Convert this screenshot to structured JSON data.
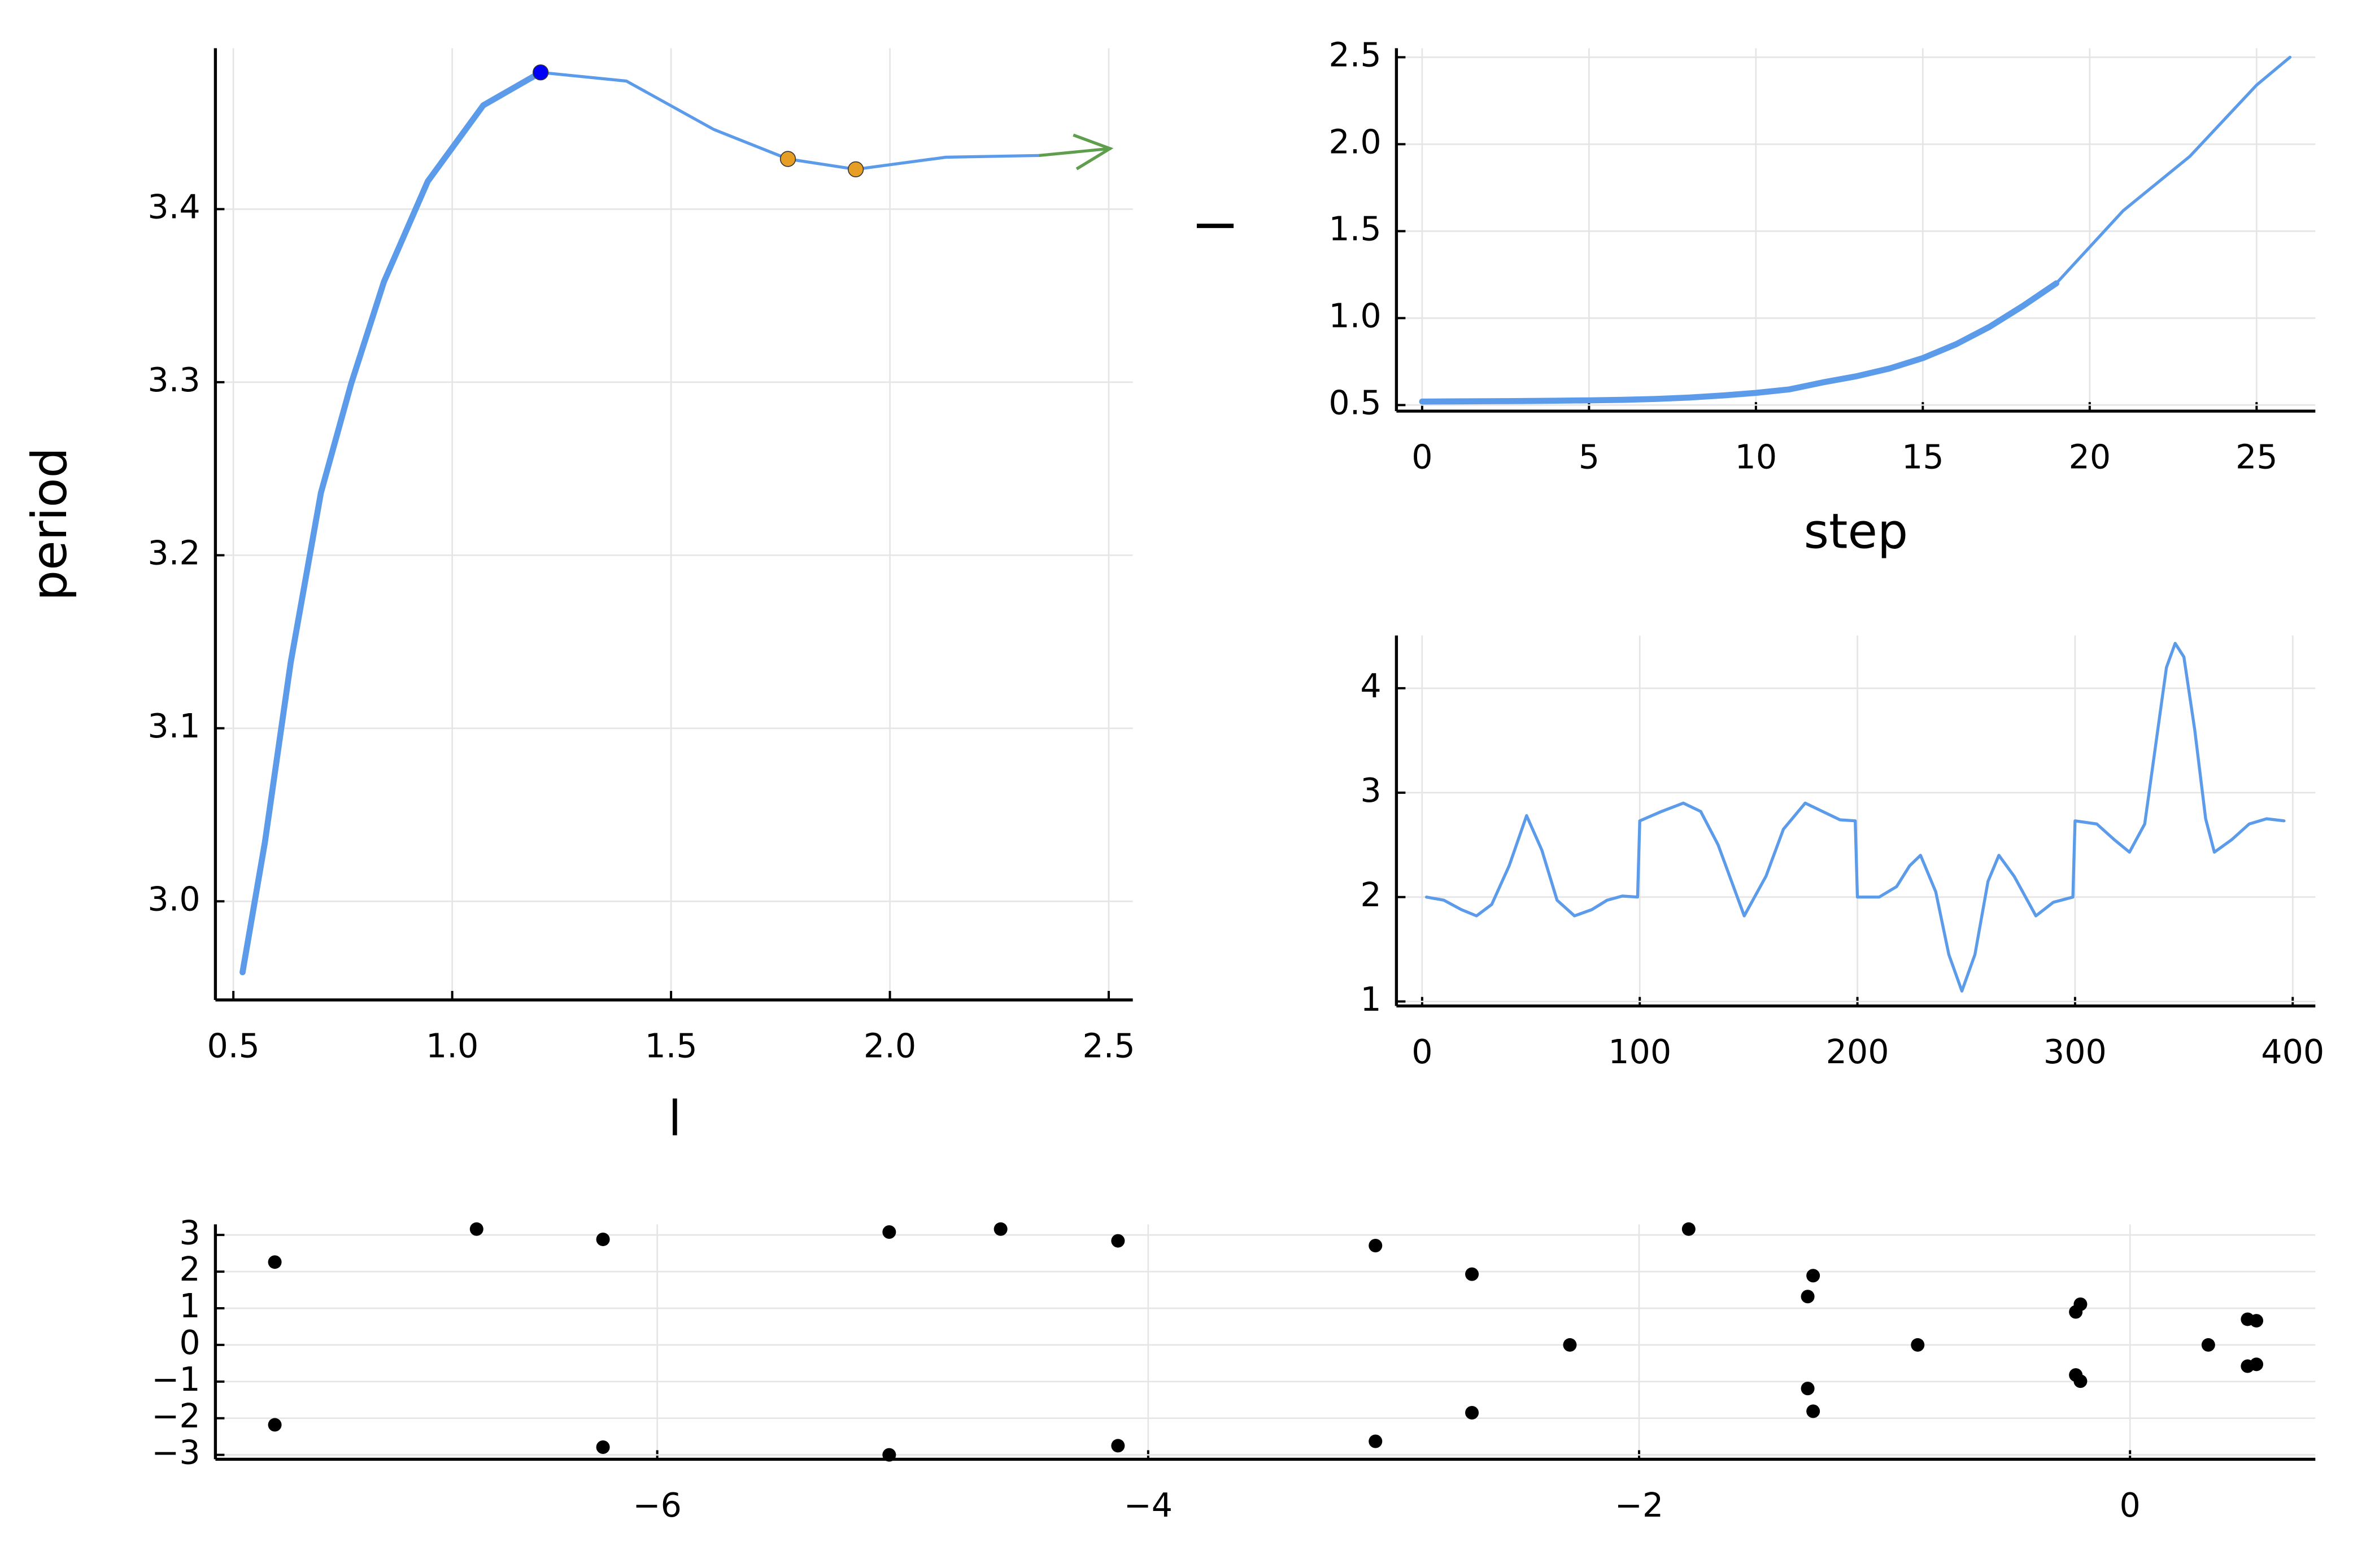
{
  "chart_data": [
    {
      "type": "line",
      "x_label": "l",
      "y_label": "period",
      "xlim": [
        0.459,
        2.555
      ],
      "ylim": [
        2.943,
        3.493
      ],
      "grid": true,
      "xticks": [
        0.5,
        {
          "value": 1,
          "label": "1.0"
        },
        1.5,
        {
          "value": 2,
          "label": "2.0"
        },
        2.5
      ],
      "yticks": [
        {
          "value": 3,
          "label": "3.0"
        },
        3.1,
        3.2,
        3.3,
        3.4
      ],
      "series": [
        {
          "color": "#5b9bea",
          "line_width": 4,
          "x": [
            0.521,
            0.572,
            0.631,
            0.7,
            0.769,
            0.844,
            0.944,
            1.071,
            1.202
          ],
          "values": [
            2.959,
            3.034,
            3.138,
            3.236,
            3.299,
            3.358,
            3.416,
            3.46,
            3.479
          ]
        },
        {
          "color": "#5b9bea",
          "line_width": 2,
          "x": [
            0.521,
            0.572,
            0.631,
            0.7,
            0.769,
            0.844,
            0.944,
            1.071,
            1.202,
            1.398,
            1.598,
            1.767,
            1.922,
            2.128,
            2.341
          ],
          "values": [
            2.959,
            3.034,
            3.138,
            3.236,
            3.299,
            3.358,
            3.416,
            3.46,
            3.479,
            3.474,
            3.446,
            3.429,
            3.423,
            3.43,
            3.431
          ]
        }
      ],
      "markers": [
        {
          "x": 1.202,
          "y": 3.479,
          "color": "#0000ff"
        },
        {
          "x": 1.767,
          "y": 3.429,
          "color": "#e69f24"
        },
        {
          "x": 1.922,
          "y": 3.423,
          "color": "#e69f24"
        }
      ],
      "arrow": {
        "x": [
          2.341,
          2.503
        ],
        "y": [
          3.431,
          3.435
        ],
        "color": "#5f9e4c"
      }
    },
    {
      "type": "line",
      "x_label": "step",
      "y_label": "l",
      "xlim": [
        -0.77,
        26.76
      ],
      "ylim": [
        0.465,
        2.552
      ],
      "grid": true,
      "xticks": [
        0,
        5,
        10,
        15,
        20,
        25
      ],
      "yticks": [
        0.5,
        {
          "value": 1,
          "label": "1.0"
        },
        1.5,
        {
          "value": 2,
          "label": "2.0"
        },
        2.5
      ],
      "series": [
        {
          "color": "#5b9bea",
          "line_width": 4,
          "x": [
            0,
            1,
            2,
            3,
            4,
            5,
            6,
            7,
            8,
            9,
            10,
            11,
            12,
            13,
            14,
            15,
            16,
            17,
            18,
            19
          ],
          "values": [
            0.52,
            0.521,
            0.522,
            0.523,
            0.525,
            0.527,
            0.53,
            0.535,
            0.543,
            0.555,
            0.57,
            0.59,
            0.63,
            0.665,
            0.71,
            0.77,
            0.85,
            0.95,
            1.07,
            1.2
          ]
        },
        {
          "color": "#5b9bea",
          "line_width": 2,
          "x": [
            0,
            1,
            2,
            3,
            4,
            5,
            6,
            7,
            8,
            9,
            10,
            11,
            12,
            13,
            14,
            15,
            16,
            17,
            18,
            19,
            21,
            23,
            25,
            26
          ],
          "values": [
            0.52,
            0.521,
            0.522,
            0.523,
            0.525,
            0.527,
            0.53,
            0.535,
            0.543,
            0.555,
            0.57,
            0.59,
            0.63,
            0.665,
            0.71,
            0.77,
            0.85,
            0.95,
            1.07,
            1.2,
            1.617,
            1.93,
            2.34,
            2.5
          ]
        }
      ]
    },
    {
      "type": "line",
      "xlim": [
        -11.8,
        410.4
      ],
      "ylim": [
        0.957,
        4.505
      ],
      "grid": true,
      "xticks": [
        0,
        100,
        200,
        300,
        400
      ],
      "yticks": [
        1,
        2,
        3,
        4
      ],
      "series": [
        {
          "color": "#5b9bea",
          "line_width": 2,
          "x": [
            2,
            10,
            18,
            25,
            32,
            40,
            48,
            55,
            62,
            70,
            78,
            85,
            92,
            99,
            100,
            110,
            120,
            128,
            136,
            148,
            158,
            166,
            176,
            184,
            192,
            199,
            200,
            210,
            218,
            224,
            229,
            236,
            242,
            248,
            254,
            260,
            265,
            272,
            282,
            290,
            299,
            300,
            310,
            318,
            325,
            332,
            338,
            342,
            346,
            350,
            355,
            360,
            364,
            372,
            380,
            388,
            396
          ],
          "values": [
            2.0,
            1.97,
            1.88,
            1.82,
            1.93,
            2.3,
            2.78,
            2.45,
            1.97,
            1.82,
            1.88,
            1.97,
            2.01,
            2.0,
            2.73,
            2.82,
            2.9,
            2.82,
            2.5,
            1.82,
            2.2,
            2.65,
            2.9,
            2.82,
            2.74,
            2.73,
            2.0,
            2.0,
            2.1,
            2.3,
            2.4,
            2.05,
            1.45,
            1.1,
            1.45,
            2.15,
            2.4,
            2.2,
            1.82,
            1.95,
            2.0,
            2.73,
            2.7,
            2.55,
            2.43,
            2.7,
            3.6,
            4.2,
            4.43,
            4.3,
            3.6,
            2.75,
            2.43,
            2.55,
            2.7,
            2.75,
            2.73
          ]
        }
      ]
    },
    {
      "type": "scatter",
      "color": "#000000",
      "xlim": [
        -7.8,
        0.755
      ],
      "ylim": [
        -3.12,
        3.29
      ],
      "grid": true,
      "xticks": [
        {
          "value": -6,
          "label": "−6"
        },
        {
          "value": -4,
          "label": "−4"
        },
        {
          "value": -2,
          "label": "−2"
        },
        0
      ],
      "yticks": [
        {
          "value": -3,
          "label": "−3"
        },
        {
          "value": -2,
          "label": "−2"
        },
        {
          "value": -1,
          "label": "−1"
        },
        0,
        1,
        2,
        3
      ],
      "x": [
        -7.558,
        -7.558,
        -6.736,
        -6.221,
        -6.221,
        -5.055,
        -5.055,
        -4.601,
        -4.123,
        -4.123,
        -3.074,
        -3.074,
        -2.681,
        -2.681,
        -2.282,
        -1.798,
        -1.291,
        -1.313,
        -1.313,
        -1.291,
        -0.865,
        -0.202,
        -0.221,
        -0.221,
        -0.202,
        0.319,
        0.479,
        0.515,
        0.479,
        0.515
      ],
      "values": [
        2.26,
        -2.18,
        3.16,
        2.88,
        -2.79,
        3.08,
        -3.0,
        3.16,
        2.84,
        -2.75,
        2.71,
        -2.63,
        1.93,
        -1.85,
        0,
        3.16,
        1.89,
        1.32,
        -1.19,
        -1.81,
        0,
        1.11,
        0.9,
        -0.82,
        -0.99,
        0,
        0.7,
        0.66,
        -0.58,
        -0.53
      ]
    }
  ]
}
